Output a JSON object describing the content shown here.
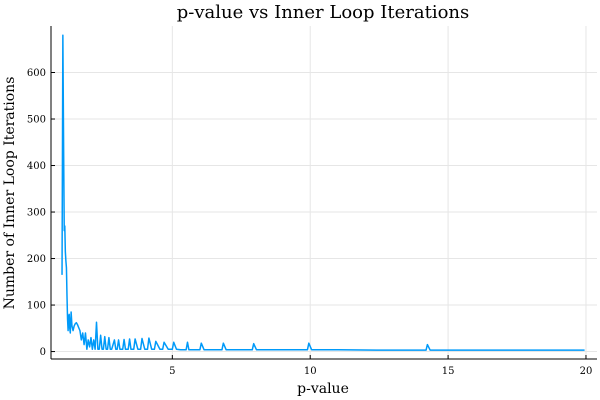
{
  "chart_data": {
    "type": "line",
    "title": "p-value vs Inner Loop Iterations",
    "xlabel": "p-value",
    "ylabel": "Number of Inner Loop Iterations",
    "xlim": [
      0.6,
      20.4
    ],
    "ylim": [
      -16,
      700
    ],
    "xticks": [
      5,
      10,
      15,
      20
    ],
    "yticks": [
      0,
      100,
      200,
      300,
      400,
      500,
      600
    ],
    "grid": true,
    "legend": "none",
    "series_color": "#009af9",
    "series": [
      {
        "x": [
          1.0,
          1.03,
          1.06,
          1.08,
          1.1,
          1.12,
          1.14,
          1.16,
          1.18,
          1.2,
          1.22,
          1.24,
          1.26,
          1.28,
          1.3,
          1.33,
          1.36,
          1.4,
          1.44,
          1.48,
          1.52,
          1.56,
          1.6,
          1.65,
          1.7,
          1.75,
          1.8,
          1.85,
          1.9,
          1.95,
          2.0,
          2.05,
          2.1,
          2.15,
          2.2,
          2.25,
          2.3,
          2.35,
          2.4,
          2.45,
          2.5,
          2.55,
          2.6,
          2.65,
          2.7,
          2.75,
          2.8,
          2.9,
          2.95,
          3.0,
          3.05,
          3.1,
          3.2,
          3.25,
          3.3,
          3.4,
          3.45,
          3.5,
          3.6,
          3.65,
          3.75,
          3.85,
          3.9,
          4.0,
          4.1,
          4.15,
          4.25,
          4.35,
          4.4,
          4.55,
          4.65,
          4.7,
          4.85,
          5.0,
          5.05,
          5.15,
          5.3,
          5.5,
          5.55,
          5.6,
          5.8,
          6.0,
          6.05,
          6.15,
          6.4,
          6.8,
          6.85,
          6.95,
          7.3,
          7.9,
          7.95,
          8.05,
          8.5,
          9.9,
          9.95,
          10.05,
          11.0,
          12.4,
          12.5,
          14.2,
          14.25,
          14.35,
          16.0,
          18.0,
          19.95
        ],
        "y": [
          165,
          680,
          420,
          260,
          270,
          215,
          195,
          180,
          120,
          70,
          45,
          75,
          80,
          50,
          40,
          85,
          55,
          45,
          55,
          60,
          62,
          58,
          52,
          45,
          25,
          40,
          15,
          40,
          5,
          25,
          10,
          30,
          5,
          25,
          5,
          63,
          5,
          5,
          35,
          5,
          5,
          32,
          5,
          5,
          30,
          5,
          5,
          25,
          5,
          5,
          25,
          5,
          5,
          26,
          5,
          5,
          27,
          5,
          5,
          27,
          5,
          5,
          28,
          5,
          5,
          29,
          5,
          5,
          22,
          5,
          5,
          20,
          5,
          5,
          20,
          5,
          4,
          4,
          20,
          4,
          4,
          4,
          18,
          4,
          4,
          4,
          18,
          4,
          4,
          4,
          17,
          4,
          4,
          4,
          18,
          4,
          4,
          3,
          3,
          3,
          15,
          3,
          3,
          3,
          3
        ]
      }
    ]
  }
}
